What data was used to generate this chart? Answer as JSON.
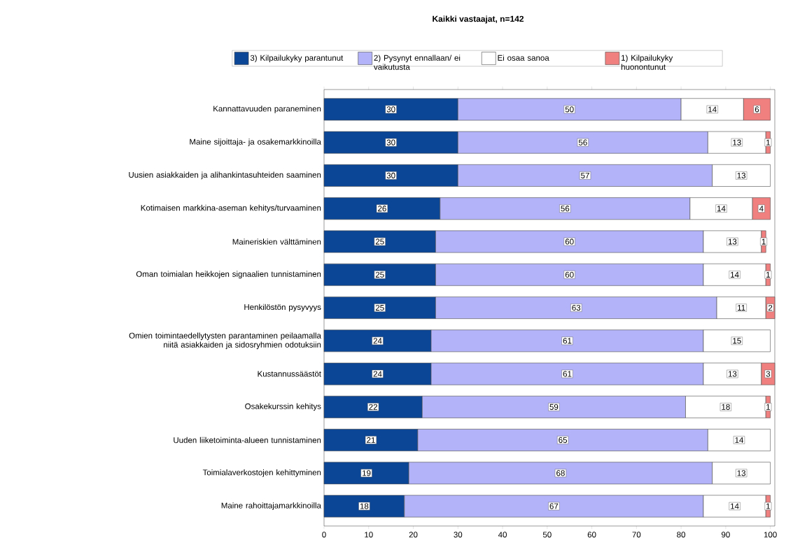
{
  "chart_data": {
    "type": "bar",
    "orientation": "horizontal",
    "stacked": true,
    "title": "Kaikki vastaajat, n=142",
    "categories": [
      "Kannattavuuden paraneminen",
      "Maine sijoittaja- ja osakemarkkinoilla",
      "Uusien asiakkaiden ja alihankintasuhteiden saaminen",
      "Kotimaisen markkina-aseman kehitys/turvaaminen",
      "Maineriskien välttäminen",
      "Oman toimialan heikkojen signaalien tunnistaminen",
      "Henkilöstön pysyvyys",
      "Omien toimintaedellytysten parantaminen peilaamalla niitä asiakkaiden ja sidosryhmien odotuksiin",
      "Kustannussäästöt",
      "Osakekurssin kehitys",
      "Uuden liiketoiminta-alueen tunnistaminen",
      "Toimialaverkostojen kehittyminen",
      "Maine rahoittajamarkkinoilla"
    ],
    "series": [
      {
        "name": "3) Kilpailukyky parantunut",
        "color": "#0a4596",
        "values": [
          30,
          30,
          30,
          26,
          25,
          25,
          25,
          24,
          24,
          22,
          21,
          19,
          18
        ]
      },
      {
        "name": "2) Pysynyt ennallaan/ ei vaikutusta",
        "color": "#b3b3fa",
        "values": [
          50,
          56,
          57,
          56,
          60,
          60,
          63,
          61,
          61,
          59,
          65,
          68,
          67
        ]
      },
      {
        "name": "Ei osaa sanoa",
        "color": "#ffffff",
        "values": [
          14,
          13,
          13,
          14,
          13,
          14,
          11,
          15,
          13,
          18,
          14,
          13,
          14
        ]
      },
      {
        "name": "1) Kilpailukyky huonontunut",
        "color": "#f08080",
        "values": [
          6,
          1,
          null,
          4,
          1,
          1,
          2,
          null,
          3,
          1,
          null,
          null,
          1
        ]
      }
    ],
    "xlim": [
      0,
      101
    ],
    "xticks": [
      0,
      10,
      20,
      30,
      40,
      50,
      60,
      70,
      80,
      90,
      100
    ],
    "data_labels": true,
    "legend": "top",
    "grid": false
  }
}
